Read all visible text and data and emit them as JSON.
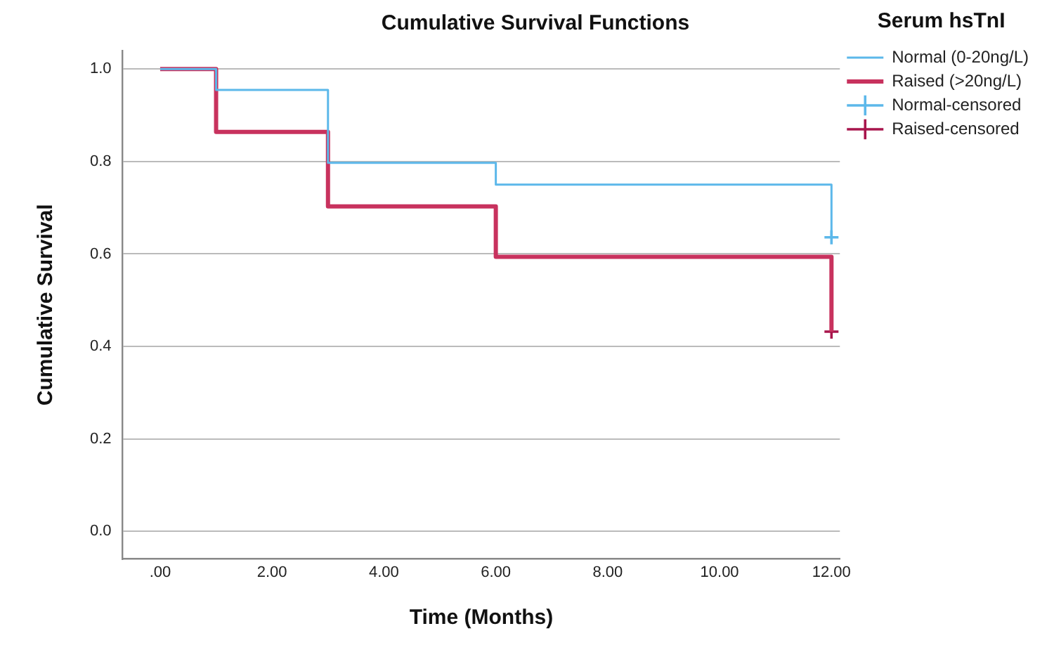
{
  "chart_data": {
    "type": "step",
    "title": "Cumulative Survival Functions",
    "xlabel": "Time (Months)",
    "ylabel": "Cumulative Survival",
    "legend_title": "Serum hsTnI",
    "series": [
      {
        "name": "Normal (0-20ng/L)",
        "color": "#5cb8ea",
        "x": [
          0,
          1,
          3,
          6,
          12
        ],
        "values": [
          1.0,
          0.955,
          0.797,
          0.75,
          0.636
        ]
      },
      {
        "name": "Raised (>20ng/L)",
        "color": "#c8325e",
        "x": [
          0,
          1,
          3,
          6,
          12
        ],
        "values": [
          1.0,
          0.864,
          0.703,
          0.594,
          0.432
        ]
      },
      {
        "name": "Normal-censored",
        "type": "scatter",
        "marker": "cross",
        "color": "#5cb8ea",
        "x": [
          12
        ],
        "values": [
          0.636
        ]
      },
      {
        "name": "Raised-censored",
        "type": "scatter",
        "marker": "cross",
        "color": "#a8154c",
        "x": [
          12
        ],
        "values": [
          0.432
        ]
      }
    ],
    "xlim": [
      -0.67,
      12.15
    ],
    "ylim": [
      -0.06,
      1.04
    ],
    "xticks": [
      {
        "value": 0,
        "label": ".00"
      },
      {
        "value": 2,
        "label": "2.00"
      },
      {
        "value": 4,
        "label": "4.00"
      },
      {
        "value": 6,
        "label": "6.00"
      },
      {
        "value": 8,
        "label": "8.00"
      },
      {
        "value": 10,
        "label": "10.00"
      },
      {
        "value": 12,
        "label": "12.00"
      }
    ],
    "yticks": [
      {
        "value": 0,
        "label": "0.0"
      },
      {
        "value": 0.2,
        "label": "0.2"
      },
      {
        "value": 0.4,
        "label": "0.4"
      },
      {
        "value": 0.6,
        "label": "0.6"
      },
      {
        "value": 0.8,
        "label": "0.8"
      },
      {
        "value": 1,
        "label": "1.0"
      }
    ],
    "grid": "y",
    "legend": "top right"
  }
}
